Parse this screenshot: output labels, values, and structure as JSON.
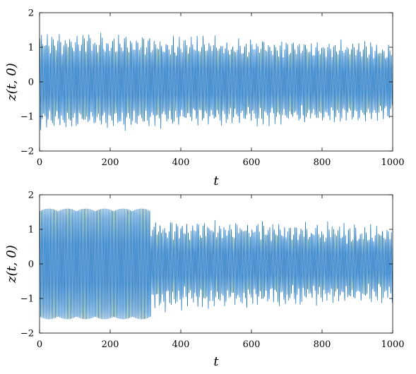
{
  "chart_data": [
    {
      "type": "line",
      "xlabel": "t",
      "ylabel": "z(t, 0)",
      "xlim": [
        0,
        1000
      ],
      "ylim": [
        -2,
        2
      ],
      "xticks": [
        "0",
        "200",
        "400",
        "600",
        "800",
        "1000"
      ],
      "yticks": [
        "2",
        "1",
        "0",
        "-1",
        "-2"
      ],
      "grid": false,
      "series_color": "#1f77c4",
      "signal": {
        "description_of_envelope": "oscillation with amplitude decaying from about 1.5 at t=0 to about 1.2 at t=1000",
        "amplitude_start": 1.5,
        "amplitude_end": 1.2,
        "period_t": 4.2
      }
    },
    {
      "type": "line",
      "xlabel": "t",
      "ylabel": "z(t, 0)",
      "xlim": [
        0,
        1000
      ],
      "ylim": [
        -2,
        2
      ],
      "xticks": [
        "0",
        "200",
        "400",
        "600",
        "800",
        "1000"
      ],
      "yticks": [
        "2",
        "1",
        "0",
        "-1",
        "-2"
      ],
      "grid": false,
      "series_color": "#1f77c4",
      "signal": {
        "regular_until_t": 315,
        "regular_amplitude": 1.6,
        "irregular_amplitude_start": 1.45,
        "irregular_amplitude_end": 1.2,
        "period_t": 4.2
      }
    }
  ]
}
